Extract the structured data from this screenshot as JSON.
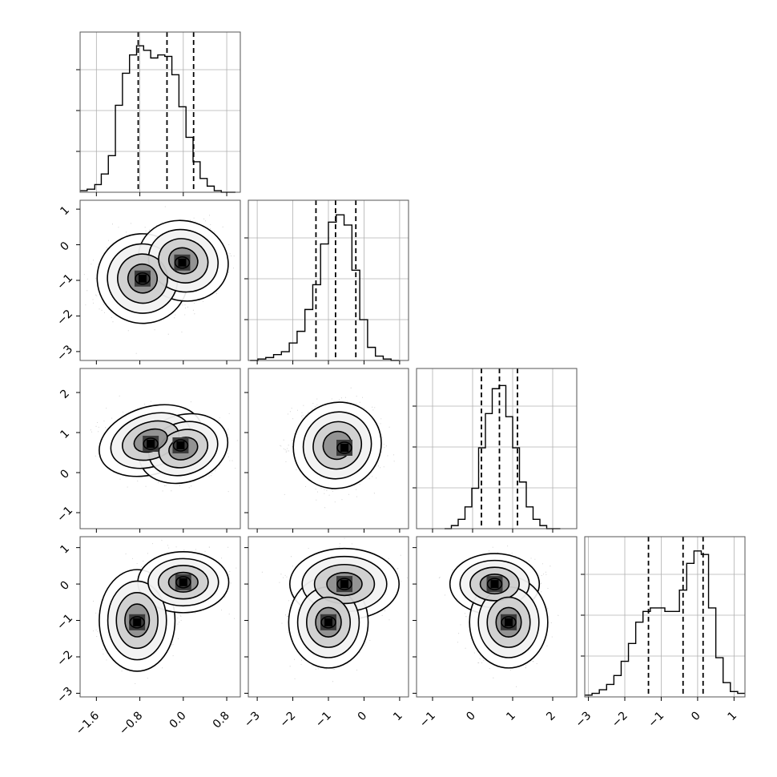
{
  "chart_data": {
    "type": "corner",
    "grid": true,
    "colors": {
      "hist": "#000000",
      "contour": "#000000",
      "points": "#9a9a9a",
      "grid": "#b0b0b0",
      "frame": "#555555"
    },
    "quantiles": [
      0.16,
      0.5,
      0.84
    ],
    "params": [
      {
        "range": [
          -1.9,
          1.05
        ],
        "ticks": [
          -1.6,
          -0.8,
          0.0,
          0.8
        ],
        "tick_labels": [
          "−1.6",
          "−0.8",
          "0.0",
          "0.8"
        ],
        "y_ticks": [],
        "quantile_values": [
          -0.83,
          -0.3,
          0.19
        ],
        "hist_edges": [
          -1.9,
          -1.77,
          -1.63,
          -1.51,
          -1.38,
          -1.25,
          -1.12,
          -0.99,
          -0.86,
          -0.73,
          -0.6,
          -0.47,
          -0.34,
          -0.21,
          -0.08,
          0.05,
          0.18,
          0.31,
          0.44,
          0.57,
          0.7,
          0.83,
          0.96
        ],
        "hist_counts": [
          0.01,
          0.02,
          0.05,
          0.12,
          0.24,
          0.57,
          0.78,
          0.9,
          0.96,
          0.93,
          0.88,
          0.9,
          0.89,
          0.77,
          0.56,
          0.36,
          0.2,
          0.09,
          0.04,
          0.01,
          0.0,
          0.0
        ],
        "hist_ylim": [
          0,
          1.05
        ]
      },
      {
        "range": [
          -3.25,
          1.25
        ],
        "ticks": [
          -3,
          -2,
          -1,
          0,
          1
        ],
        "tick_labels": [
          "−3",
          "−2",
          "−1",
          "0",
          "1"
        ],
        "quantile_values": [
          -1.35,
          -0.8,
          -0.23
        ],
        "hist_edges": [
          -3.2,
          -2.98,
          -2.76,
          -2.54,
          -2.32,
          -2.1,
          -1.88,
          -1.66,
          -1.44,
          -1.22,
          -1.0,
          -0.78,
          -0.56,
          -0.34,
          -0.12,
          0.1,
          0.32,
          0.54,
          0.76,
          0.98
        ],
        "hist_counts": [
          0.0,
          0.01,
          0.02,
          0.04,
          0.06,
          0.12,
          0.2,
          0.35,
          0.52,
          0.8,
          0.95,
          1.0,
          0.93,
          0.62,
          0.28,
          0.09,
          0.03,
          0.01,
          0.0
        ],
        "hist_ylim": [
          0,
          1.1
        ]
      },
      {
        "range": [
          -1.4,
          2.6
        ],
        "ticks": [
          -1,
          0,
          1,
          2
        ],
        "tick_labels": [
          "−1",
          "0",
          "1",
          "2"
        ],
        "quantile_values": [
          0.22,
          0.67,
          1.12
        ],
        "hist_edges": [
          -0.7,
          -0.53,
          -0.36,
          -0.19,
          -0.02,
          0.15,
          0.32,
          0.49,
          0.66,
          0.83,
          1.0,
          1.17,
          1.34,
          1.51,
          1.68,
          1.85,
          2.02,
          2.19
        ],
        "hist_counts": [
          0.0,
          0.02,
          0.06,
          0.14,
          0.26,
          0.52,
          0.74,
          0.9,
          0.92,
          0.72,
          0.52,
          0.3,
          0.14,
          0.06,
          0.02,
          0.0,
          0.0
        ],
        "hist_ylim": [
          0,
          1.03
        ]
      },
      {
        "range": [
          -3.1,
          1.3
        ],
        "ticks": [
          -3,
          -2,
          -1,
          0,
          1
        ],
        "tick_labels": [
          "−3",
          "−2",
          "−1",
          "0",
          "1"
        ],
        "quantile_values": [
          -1.35,
          -0.4,
          0.15
        ],
        "hist_edges": [
          -3.1,
          -2.9,
          -2.7,
          -2.5,
          -2.3,
          -2.1,
          -1.9,
          -1.7,
          -1.5,
          -1.3,
          -1.1,
          -0.9,
          -0.7,
          -0.5,
          -0.3,
          -0.1,
          0.1,
          0.3,
          0.5,
          0.7,
          0.9,
          1.1,
          1.3
        ],
        "hist_counts": [
          0.01,
          0.02,
          0.04,
          0.07,
          0.12,
          0.2,
          0.3,
          0.42,
          0.48,
          0.5,
          0.5,
          0.48,
          0.48,
          0.6,
          0.75,
          0.82,
          0.8,
          0.5,
          0.22,
          0.08,
          0.03,
          0.02
        ],
        "hist_ylim": [
          0,
          0.9
        ]
      }
    ],
    "pairs": [
      {
        "x_param": 0,
        "y_param": 1,
        "components": [
          {
            "mx": -0.75,
            "my": -0.95,
            "sx": 0.3,
            "sy": 0.45,
            "w": 0.55
          },
          {
            "mx": 0.0,
            "my": -0.45,
            "sx": 0.3,
            "sy": 0.4,
            "w": 0.45
          }
        ],
        "peaks": [
          {
            "x": -0.02,
            "y": -0.5
          },
          {
            "x": -0.75,
            "y": -0.95
          }
        ],
        "rotation_deg": 18
      },
      {
        "x_param": 0,
        "y_param": 2,
        "components": [
          {
            "mx": -0.6,
            "my": 0.8,
            "sx": 0.35,
            "sy": 0.3,
            "w": 0.55
          },
          {
            "mx": 0.0,
            "my": 0.6,
            "sx": 0.3,
            "sy": 0.3,
            "w": 0.45
          }
        ],
        "peaks": [
          {
            "x": -0.6,
            "y": 0.72
          },
          {
            "x": -0.05,
            "y": 0.68
          }
        ],
        "rotation_deg": -18
      },
      {
        "x_param": 1,
        "y_param": 2,
        "components": [
          {
            "mx": -0.75,
            "my": 0.68,
            "sx": 0.45,
            "sy": 0.38,
            "w": 1.0
          }
        ],
        "peaks": [
          {
            "x": -0.55,
            "y": 0.62
          }
        ],
        "rotation_deg": -35
      },
      {
        "x_param": 0,
        "y_param": 3,
        "components": [
          {
            "mx": -0.85,
            "my": -1.0,
            "sx": 0.25,
            "sy": 0.5,
            "w": 0.45
          },
          {
            "mx": 0.0,
            "my": 0.05,
            "sx": 0.3,
            "sy": 0.3,
            "w": 0.55
          }
        ],
        "peaks": [
          {
            "x": 0.0,
            "y": 0.05
          },
          {
            "x": -0.85,
            "y": -1.05
          }
        ],
        "rotation_deg": 0
      },
      {
        "x_param": 1,
        "y_param": 3,
        "components": [
          {
            "mx": -0.55,
            "my": 0.0,
            "sx": 0.55,
            "sy": 0.35,
            "w": 0.6
          },
          {
            "mx": -1.0,
            "my": -1.05,
            "sx": 0.4,
            "sy": 0.45,
            "w": 0.4
          }
        ],
        "peaks": [
          {
            "x": -0.55,
            "y": 0.0
          },
          {
            "x": -1.0,
            "y": -1.05
          }
        ],
        "rotation_deg": 0
      },
      {
        "x_param": 2,
        "y_param": 3,
        "components": [
          {
            "mx": 0.55,
            "my": 0.0,
            "sx": 0.4,
            "sy": 0.3,
            "w": 0.6
          },
          {
            "mx": 0.9,
            "my": -1.05,
            "sx": 0.35,
            "sy": 0.45,
            "w": 0.4
          }
        ],
        "peaks": [
          {
            "x": 0.55,
            "y": 0.0
          },
          {
            "x": 0.9,
            "y": -1.05
          }
        ],
        "rotation_deg": 0
      }
    ]
  }
}
